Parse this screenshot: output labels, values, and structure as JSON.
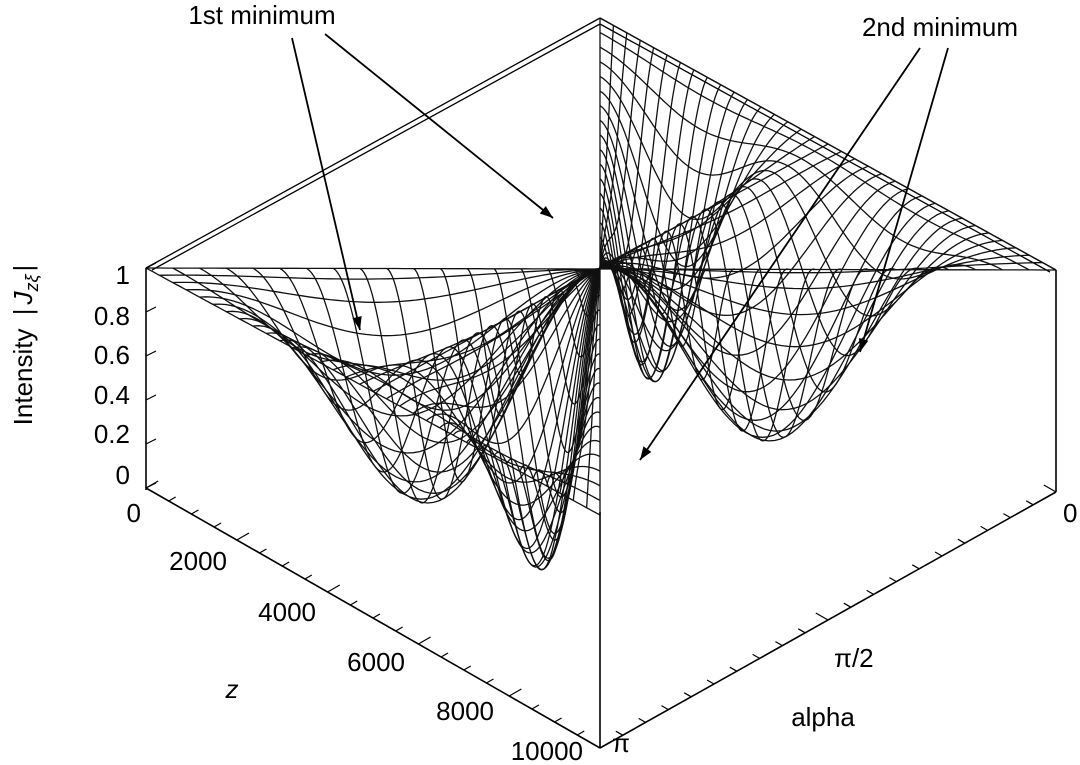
{
  "chart_data": {
    "type": "surface3d",
    "zlabel_prefix": "Intensity",
    "zlabel_symbol": "J",
    "zlabel_subscript": "zξ",
    "xlabel": "z",
    "ylabel": "alpha",
    "z_ticks": [
      "0",
      "0.2",
      "0.4",
      "0.6",
      "0.8",
      "1"
    ],
    "x_ticks": [
      "0",
      "2000",
      "4000",
      "6000",
      "8000",
      "10000"
    ],
    "alpha_ticks": [
      "0",
      "π/2",
      "π"
    ],
    "xlim": [
      0,
      10000
    ],
    "alpha_range": [
      "0",
      "π"
    ],
    "zlim": [
      0,
      1
    ],
    "annotations": [
      {
        "text": "1st minimum"
      },
      {
        "text": "2nd minimum"
      }
    ],
    "surface_description": "Intensity = 1 along the alpha = 0, alpha = π and z = 0, z = 10000 edges; two minima per direction forming a 2×2 array of dips reaching 0."
  }
}
